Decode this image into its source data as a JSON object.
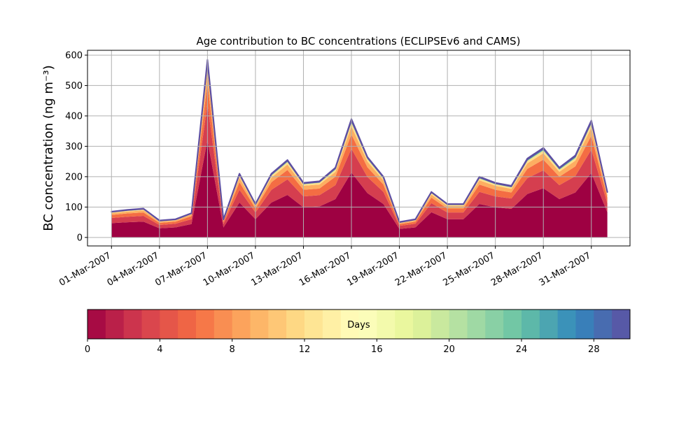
{
  "chart_data": {
    "type": "stacked_area",
    "title": "Age contribution to BC concentrations (ECLIPSEv6 and CAMS)",
    "ylabel": "BC concentration (ng m⁻³)",
    "x": [
      "2007-03-01",
      "2007-03-02",
      "2007-03-03",
      "2007-03-04",
      "2007-03-05",
      "2007-03-06",
      "2007-03-07",
      "2007-03-08",
      "2007-03-09",
      "2007-03-10",
      "2007-03-11",
      "2007-03-12",
      "2007-03-13",
      "2007-03-14",
      "2007-03-15",
      "2007-03-16",
      "2007-03-17",
      "2007-03-18",
      "2007-03-19",
      "2007-03-20",
      "2007-03-21",
      "2007-03-22",
      "2007-03-23",
      "2007-03-24",
      "2007-03-25",
      "2007-03-26",
      "2007-03-27",
      "2007-03-28",
      "2007-03-29",
      "2007-03-30",
      "2007-03-31",
      "2007-04-01"
    ],
    "series": [
      {
        "color": "#9e0142",
        "values": [
          47,
          50,
          52,
          30,
          33,
          44,
          320,
          33,
          115,
          60,
          115,
          140,
          99,
          102,
          126,
          214,
          146,
          110,
          28,
          33,
          83,
          60,
          60,
          110,
          99,
          94,
          143,
          162,
          126,
          148,
          212,
          83
        ]
      },
      {
        "color": "#d53e4f",
        "values": [
          17,
          18,
          19,
          11,
          12,
          16,
          120,
          12,
          42,
          22,
          42,
          51,
          36,
          37,
          46,
          78,
          53,
          40,
          10,
          12,
          30,
          22,
          22,
          40,
          36,
          34,
          52,
          59,
          46,
          54,
          77,
          30
        ]
      },
      {
        "color": "#f46d43",
        "values": [
          10,
          11,
          11,
          7,
          7,
          10,
          70,
          7,
          25,
          13,
          25,
          31,
          22,
          22,
          28,
          47,
          32,
          24,
          6,
          7,
          18,
          13,
          13,
          24,
          22,
          20,
          31,
          35,
          28,
          32,
          46,
          18
        ]
      },
      {
        "color": "#fdae61",
        "values": [
          6,
          6,
          7,
          4,
          4,
          6,
          41,
          4,
          15,
          8,
          15,
          18,
          13,
          13,
          16,
          27,
          19,
          14,
          3,
          4,
          10,
          8,
          8,
          14,
          13,
          12,
          18,
          21,
          16,
          19,
          27,
          10
        ]
      },
      {
        "color": "#fee08b",
        "values": [
          3,
          3,
          3,
          2,
          2,
          2,
          18,
          2,
          7,
          4,
          7,
          8,
          5,
          6,
          7,
          12,
          8,
          6,
          2,
          2,
          5,
          4,
          4,
          6,
          5,
          5,
          8,
          9,
          7,
          8,
          12,
          5
        ]
      },
      {
        "color": "#66c2a5",
        "values": [
          1,
          2,
          2,
          1,
          1,
          1,
          10,
          1,
          4,
          2,
          4,
          5,
          3,
          3,
          5,
          8,
          5,
          4,
          1,
          1,
          3,
          2,
          2,
          4,
          3,
          3,
          5,
          6,
          5,
          6,
          7,
          3
        ]
      },
      {
        "color": "#5e4fa2",
        "values": [
          1,
          1,
          1,
          1,
          1,
          1,
          6,
          1,
          2,
          1,
          2,
          2,
          2,
          2,
          2,
          4,
          2,
          2,
          1,
          1,
          1,
          1,
          1,
          2,
          2,
          2,
          3,
          3,
          2,
          3,
          4,
          1
        ]
      }
    ],
    "xlim": [
      "2007-02-27T12:00",
      "2007-04-02T10:00"
    ],
    "xticks": [
      {
        "value": "2007-03-01",
        "label": "01-Mar-2007"
      },
      {
        "value": "2007-03-04",
        "label": "04-Mar-2007"
      },
      {
        "value": "2007-03-07",
        "label": "07-Mar-2007"
      },
      {
        "value": "2007-03-10",
        "label": "10-Mar-2007"
      },
      {
        "value": "2007-03-13",
        "label": "13-Mar-2007"
      },
      {
        "value": "2007-03-16",
        "label": "16-Mar-2007"
      },
      {
        "value": "2007-03-19",
        "label": "19-Mar-2007"
      },
      {
        "value": "2007-03-22",
        "label": "22-Mar-2007"
      },
      {
        "value": "2007-03-25",
        "label": "25-Mar-2007"
      },
      {
        "value": "2007-03-28",
        "label": "28-Mar-2007"
      },
      {
        "value": "2007-03-31",
        "label": "31-Mar-2007"
      }
    ],
    "ylim": [
      -28,
      616
    ],
    "yticks": [
      0,
      100,
      200,
      300,
      400,
      500,
      600
    ],
    "grid": true,
    "colorbar": {
      "label": "Days",
      "lim": [
        0,
        30
      ],
      "ticks": [
        0,
        4,
        8,
        12,
        16,
        20,
        24,
        28
      ],
      "levels": 30,
      "colormap": [
        "#9e0142",
        "#d53e4f",
        "#f46d43",
        "#fdae61",
        "#fee08b",
        "#ffffbf",
        "#e6f598",
        "#abdda4",
        "#66c2a5",
        "#3288bd",
        "#5e4fa2"
      ]
    }
  }
}
